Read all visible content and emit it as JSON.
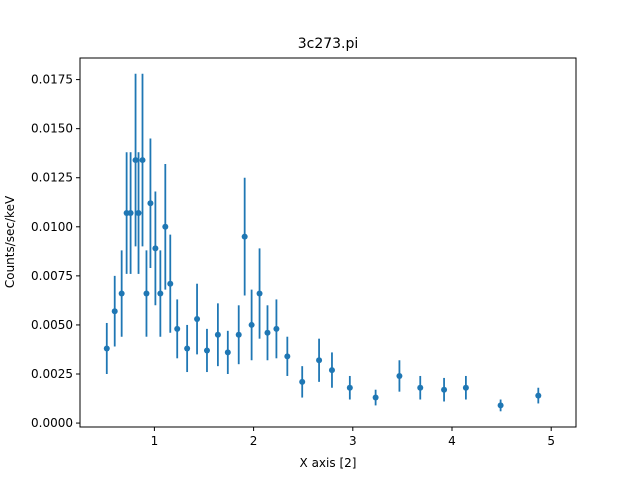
{
  "figure": {
    "title": "3c273.pi",
    "xlabel": "X axis [2]",
    "ylabel": "Counts/sec/keV"
  },
  "colors": {
    "series": "#1f77b4",
    "axes": "#000000",
    "background": "#ffffff"
  },
  "chart_data": {
    "type": "scatter",
    "title": "3c273.pi",
    "xlabel": "X axis [2]",
    "ylabel": "Counts/sec/keV",
    "xlim": [
      0.25,
      5.25
    ],
    "ylim": [
      -0.0002,
      0.0186
    ],
    "xticks": [
      1,
      2,
      3,
      4,
      5
    ],
    "xtick_labels": [
      "1",
      "2",
      "3",
      "4",
      "5"
    ],
    "yticks": [
      0.0,
      0.0025,
      0.005,
      0.0075,
      0.01,
      0.0125,
      0.015,
      0.0175
    ],
    "ytick_labels": [
      "0.0000",
      "0.0025",
      "0.0050",
      "0.0075",
      "0.0100",
      "0.0125",
      "0.0150",
      "0.0175"
    ],
    "grid": false,
    "legend": null,
    "series": [
      {
        "name": "3c273.pi",
        "marker": "o",
        "errorbars": true,
        "x": [
          0.52,
          0.6,
          0.67,
          0.72,
          0.76,
          0.81,
          0.84,
          0.88,
          0.92,
          0.96,
          1.01,
          1.06,
          1.11,
          1.16,
          1.23,
          1.33,
          1.43,
          1.53,
          1.64,
          1.74,
          1.85,
          1.91,
          1.98,
          2.06,
          2.14,
          2.23,
          2.34,
          2.49,
          2.66,
          2.79,
          2.97,
          3.23,
          3.47,
          3.68,
          3.92,
          4.14,
          4.49,
          4.87
        ],
        "y": [
          0.0038,
          0.0057,
          0.0066,
          0.0107,
          0.0107,
          0.0134,
          0.0107,
          0.0134,
          0.0066,
          0.0112,
          0.0089,
          0.0066,
          0.01,
          0.0071,
          0.0048,
          0.0038,
          0.0053,
          0.0037,
          0.0045,
          0.0036,
          0.0045,
          0.0095,
          0.005,
          0.0066,
          0.0046,
          0.0048,
          0.0034,
          0.0021,
          0.0032,
          0.0027,
          0.0018,
          0.0013,
          0.0024,
          0.0018,
          0.0017,
          0.0018,
          0.0009,
          0.0014
        ],
        "yerr": [
          0.0013,
          0.0018,
          0.0022,
          0.0031,
          0.0031,
          0.0044,
          0.0031,
          0.0044,
          0.0022,
          0.0033,
          0.0029,
          0.0022,
          0.0032,
          0.0025,
          0.0015,
          0.0012,
          0.0018,
          0.0011,
          0.0016,
          0.0011,
          0.0015,
          0.003,
          0.0018,
          0.0023,
          0.0014,
          0.0015,
          0.001,
          0.0008,
          0.0011,
          0.0009,
          0.0006,
          0.0004,
          0.0008,
          0.0006,
          0.0006,
          0.0006,
          0.0003,
          0.0004
        ]
      }
    ]
  }
}
